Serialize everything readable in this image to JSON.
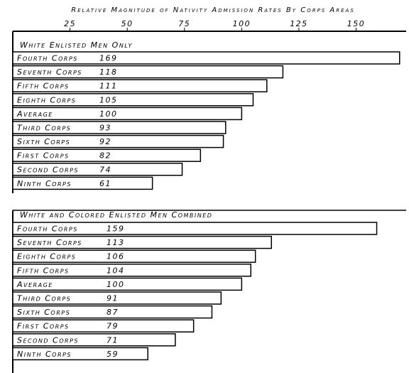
{
  "chart_data": [
    {
      "type": "bar",
      "orientation": "horizontal",
      "title": "Relative Magnitude of Nativity Admission Rates By Corps Areas",
      "subtitle": "White Enlisted Men Only",
      "categories": [
        "Fourth Corps",
        "Seventh Corps",
        "Fifth Corps",
        "Eighth Corps",
        "Average",
        "Third Corps",
        "Sixth Corps",
        "First Corps",
        "Second Corps",
        "Ninth Corps"
      ],
      "values": [
        169,
        118,
        111,
        105,
        100,
        93,
        92,
        82,
        74,
        61
      ],
      "color": "#ffffff",
      "xlim": [
        0,
        170
      ],
      "xticks": [
        25,
        50,
        75,
        100,
        125,
        150
      ]
    },
    {
      "type": "bar",
      "orientation": "horizontal",
      "subtitle": "White and Colored Enlisted Men Combined",
      "categories": [
        "Fourth Corps",
        "Seventh Corps",
        "Eighth Corps",
        "Fifth Corps",
        "Average",
        "Third Corps",
        "Sixth Corps",
        "First Corps",
        "Second Corps",
        "Ninth Corps"
      ],
      "values": [
        159,
        113,
        106,
        104,
        100,
        91,
        87,
        79,
        71,
        59
      ],
      "color": "#ffffff",
      "xlim": [
        0,
        170
      ]
    }
  ]
}
